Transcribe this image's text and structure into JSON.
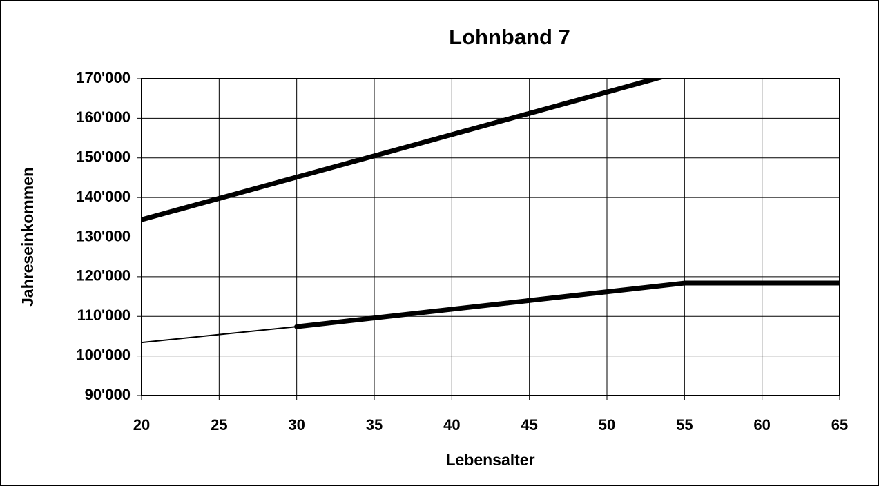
{
  "chart_data": {
    "type": "line",
    "title": "Lohnband 7",
    "x_label": "Lebensalter",
    "y_label": "Jahreseinkommen",
    "xlim": [
      20,
      65
    ],
    "xticks": [
      20,
      25,
      30,
      35,
      40,
      45,
      50,
      55,
      60,
      65
    ],
    "ylim": [
      90000,
      170000
    ],
    "yticks": [
      {
        "value": 90000,
        "label": "90'000"
      },
      {
        "value": 100000,
        "label": "100'000"
      },
      {
        "value": 110000,
        "label": "110'000"
      },
      {
        "value": 120000,
        "label": "120'000"
      },
      {
        "value": 130000,
        "label": "130'000"
      },
      {
        "value": 140000,
        "label": "140'000"
      },
      {
        "value": 150000,
        "label": "150'000"
      },
      {
        "value": 160000,
        "label": "160'000"
      },
      {
        "value": 170000,
        "label": "170'000"
      }
    ],
    "grid": true,
    "series": [
      {
        "color": "#000000",
        "linewidth": 7,
        "x": [
          20,
          55
        ],
        "values": [
          134400,
          172000
        ]
      },
      {
        "color": "#000000",
        "linewidth": 2,
        "x": [
          20,
          30
        ],
        "values": [
          103400,
          107400
        ]
      },
      {
        "color": "#000000",
        "linewidth": 7,
        "x": [
          30,
          55,
          65
        ],
        "values": [
          107400,
          118400,
          118400
        ]
      }
    ]
  }
}
